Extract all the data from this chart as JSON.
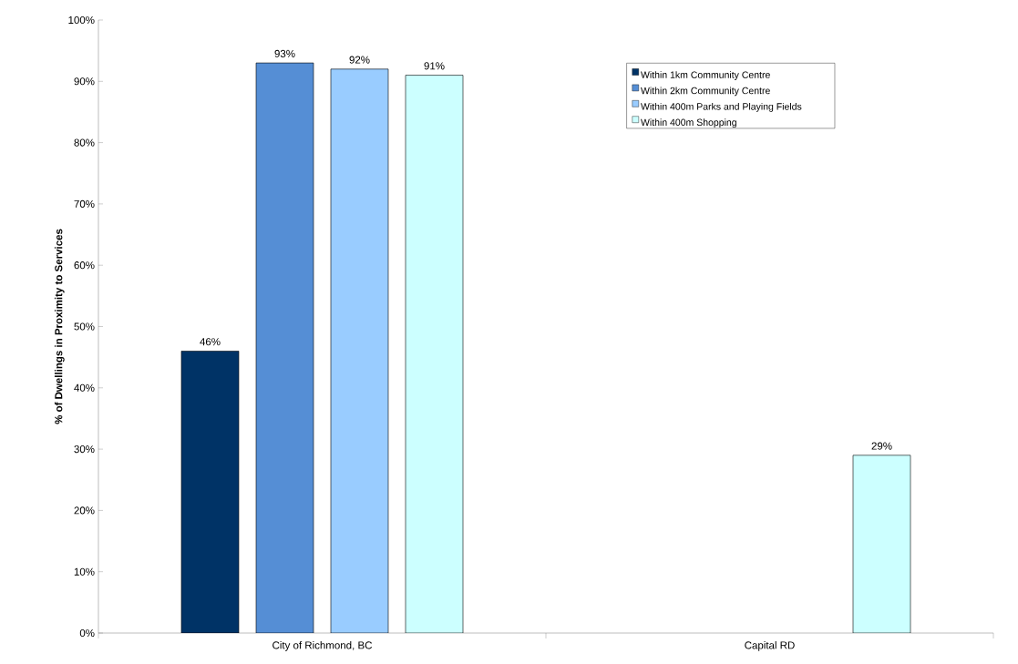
{
  "chart_data": {
    "type": "bar",
    "ylabel": "% of Dwellings in Proximity to Services",
    "categories": [
      "City of Richmond, BC",
      "Capital RD"
    ],
    "series": [
      {
        "name": "Within 1km Community Centre",
        "color": "#003366",
        "values": [
          46,
          null
        ],
        "value_labels": [
          "46%",
          null
        ]
      },
      {
        "name": "Within 2km Community Centre",
        "color": "#558ed5",
        "values": [
          93,
          null
        ],
        "value_labels": [
          "93%",
          null
        ]
      },
      {
        "name": "Within 400m Parks and Playing Fields",
        "color": "#99ccff",
        "values": [
          92,
          null
        ],
        "value_labels": [
          "92%",
          null
        ]
      },
      {
        "name": "Within 400m Shopping",
        "color": "#ccffff",
        "values": [
          91,
          29
        ],
        "value_labels": [
          "91%",
          "29%"
        ]
      }
    ],
    "ylim": [
      0,
      100
    ],
    "yticks": [
      {
        "value": 0,
        "label": "0%"
      },
      {
        "value": 10,
        "label": "10%"
      },
      {
        "value": 20,
        "label": "20%"
      },
      {
        "value": 30,
        "label": "30%"
      },
      {
        "value": 40,
        "label": "40%"
      },
      {
        "value": 50,
        "label": "50%"
      },
      {
        "value": 60,
        "label": "60%"
      },
      {
        "value": 70,
        "label": "70%"
      },
      {
        "value": 80,
        "label": "80%"
      },
      {
        "value": 90,
        "label": "90%"
      },
      {
        "value": 100,
        "label": "100%"
      }
    ],
    "grid": false,
    "legend": "top right"
  }
}
